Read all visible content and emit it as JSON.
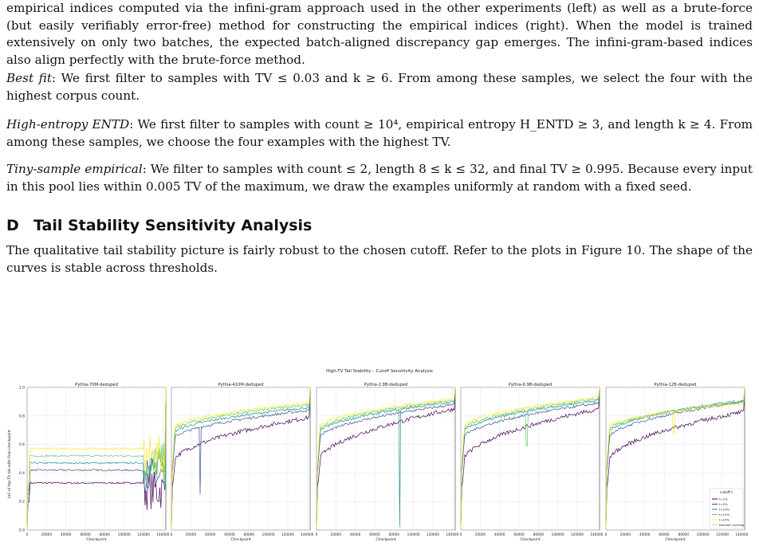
{
  "paragraphs": {
    "caption": "empirical indices computed via the infini-gram approach used in the other experiments (left) as well as a brute-force (but easily verifiably error-free) method for constructing the empirical indices (right). When the model is trained extensively on only two batches, the expected batch-aligned discrepancy gap emerges. The infini-gram-based indices also align perfectly with the brute-force method.",
    "best_fit": {
      "lead": "Best fit",
      "body": ": We first filter to samples with TV ≤ 0.03 and k ≥ 6. From among these samples, we select the four with the highest corpus count."
    },
    "high_entropy": {
      "lead": "High-entropy ENTD",
      "body": ": We first filter to samples with count ≥ 10⁴, empirical entropy H_ENTD ≥ 3, and length k ≥ 4. From among these samples, we choose the four examples with the highest TV."
    },
    "tiny_sample": {
      "lead": "Tiny-sample empirical",
      "body": ": We filter to samples with count ≤ 2, length 8 ≤ k ≤ 32, and final TV ≥ 0.995. Because every input in this pool lies within 0.005 TV of the maximum, we draw the examples uniformly at random with a fixed seed."
    },
    "sensitivity": "The qualitative tail stability picture is fairly robust to the chosen cutoff. Refer to the plots in Figure 10. The shape of the curves is stable across thresholds."
  },
  "section": {
    "number": "D",
    "title": "Tail Stability Sensitivity Analysis"
  },
  "chart_data": {
    "type": "line",
    "suptitle": "High-TV Tail Stability – Cutoff Sensitivity Analysis",
    "ylabel": "IoU of top-TV tail with final checkpoint",
    "xlabel": "Checkpoint",
    "xlim": [
      0,
      143000
    ],
    "ylim": [
      0.0,
      1.0
    ],
    "xticks": [
      0,
      20000,
      40000,
      60000,
      80000,
      100000,
      120000,
      140000
    ],
    "yticks": [
      0.0,
      0.2,
      0.4,
      0.6,
      0.8,
      1.0
    ],
    "grid": true,
    "legend": {
      "title": "cutoff t",
      "placement": "bottom-right",
      "entries": [
        "t=1%",
        "t=5%",
        "t=10%",
        "t=15%",
        "t=20%",
        "Random overlap"
      ]
    },
    "series_colors": [
      "#440154",
      "#3b528b",
      "#21918c",
      "#5ec962",
      "#fde725",
      "#bbbbbb"
    ],
    "panels": [
      {
        "title": "Pythia-70M-deduped",
        "shape": "flat",
        "plateau": [
          0.33,
          0.42,
          0.47,
          0.52,
          0.57
        ]
      },
      {
        "title": "Pythia-410M-deduped",
        "shape": "rise",
        "start": [
          0.45,
          0.62,
          0.66,
          0.68,
          0.7
        ],
        "end": [
          0.79,
          0.84,
          0.86,
          0.88,
          0.89
        ],
        "dips": [
          {
            "x": 30000,
            "y": 0.25
          }
        ]
      },
      {
        "title": "Pythia-2.8B-deduped",
        "shape": "rise",
        "start": [
          0.45,
          0.62,
          0.66,
          0.68,
          0.7
        ],
        "end": [
          0.85,
          0.88,
          0.9,
          0.91,
          0.92
        ],
        "dips": [
          {
            "x": 86000,
            "y": 0.02
          }
        ]
      },
      {
        "title": "Pythia-6.9B-deduped",
        "shape": "rise",
        "start": [
          0.45,
          0.62,
          0.66,
          0.68,
          0.7
        ],
        "end": [
          0.85,
          0.89,
          0.91,
          0.92,
          0.93
        ],
        "dips": [
          {
            "x": 68000,
            "y": 0.59
          }
        ]
      },
      {
        "title": "Pythia-12B-deduped",
        "shape": "rise",
        "start": [
          0.45,
          0.62,
          0.66,
          0.68,
          0.7
        ],
        "end": [
          0.83,
          0.9,
          0.91,
          0.9,
          0.89
        ],
        "dips": [
          {
            "x": 70000,
            "y": 0.68
          }
        ]
      }
    ]
  }
}
